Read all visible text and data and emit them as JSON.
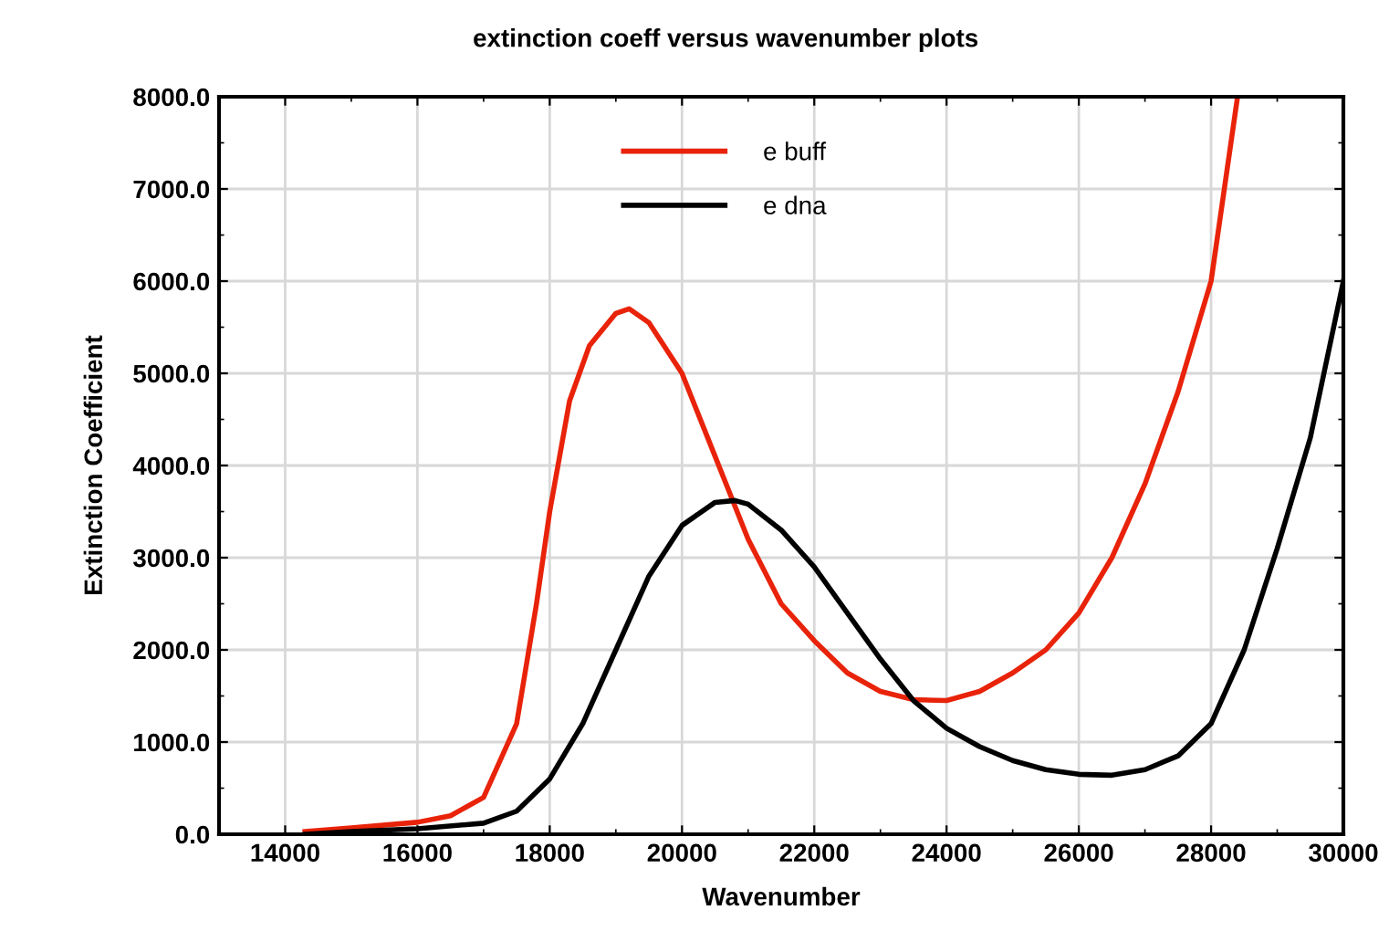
{
  "chart_data": {
    "type": "line",
    "title": "extinction coeff versus wavenumber plots",
    "xlabel": "Wavenumber",
    "ylabel": "Extinction Coefficient",
    "xlim": [
      13000,
      30000
    ],
    "ylim": [
      0,
      8000
    ],
    "xticks": [
      14000,
      16000,
      18000,
      20000,
      22000,
      24000,
      26000,
      28000,
      30000
    ],
    "yticks": [
      {
        "value": 0,
        "label": "0.0"
      },
      {
        "value": 1000,
        "label": "1000.0"
      },
      {
        "value": 2000,
        "label": "2000.0"
      },
      {
        "value": 3000,
        "label": "3000.0"
      },
      {
        "value": 4000,
        "label": "4000.0"
      },
      {
        "value": 5000,
        "label": "5000.0"
      },
      {
        "value": 6000,
        "label": "6000.0"
      },
      {
        "value": 7000,
        "label": "7000.0"
      },
      {
        "value": 8000,
        "label": "8000.0"
      }
    ],
    "grid": true,
    "legend": "top",
    "marker": "none",
    "line_style": "solid",
    "series": [
      {
        "name": "e buff",
        "color": "#e8230a",
        "x": [
          14300,
          15000,
          16000,
          16500,
          17000,
          17500,
          17800,
          18000,
          18300,
          18600,
          19000,
          19200,
          19500,
          20000,
          20500,
          21000,
          21500,
          22000,
          22500,
          23000,
          23500,
          24000,
          24500,
          25000,
          25500,
          26000,
          26500,
          27000,
          27500,
          28000,
          28200,
          28400
        ],
        "values": [
          30,
          70,
          130,
          200,
          400,
          1200,
          2500,
          3500,
          4700,
          5300,
          5650,
          5700,
          5550,
          5000,
          4100,
          3200,
          2500,
          2100,
          1750,
          1550,
          1460,
          1450,
          1550,
          1750,
          2000,
          2400,
          3000,
          3800,
          4800,
          6000,
          7000,
          8000
        ]
      },
      {
        "name": "e dna",
        "color": "#000000",
        "x": [
          14300,
          15000,
          16000,
          17000,
          17500,
          18000,
          18500,
          19000,
          19500,
          20000,
          20500,
          20800,
          21000,
          21500,
          22000,
          22500,
          23000,
          23500,
          24000,
          24500,
          25000,
          25500,
          26000,
          26500,
          27000,
          27500,
          28000,
          28500,
          29000,
          29500,
          30000
        ],
        "values": [
          0,
          30,
          60,
          120,
          250,
          600,
          1200,
          2000,
          2800,
          3350,
          3600,
          3620,
          3580,
          3300,
          2900,
          2400,
          1900,
          1450,
          1150,
          950,
          800,
          700,
          650,
          640,
          700,
          850,
          1200,
          2000,
          3100,
          4300,
          6000
        ]
      }
    ]
  }
}
